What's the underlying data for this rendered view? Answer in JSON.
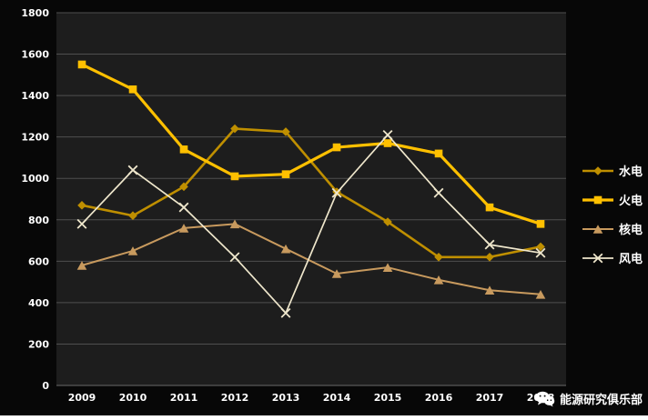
{
  "chart_data": {
    "type": "line",
    "categories": [
      "2009",
      "2010",
      "2011",
      "2012",
      "2013",
      "2014",
      "2015",
      "2016",
      "2017",
      "2018"
    ],
    "series": [
      {
        "name": "水电",
        "marker": "diamond",
        "color": "#BF8F00",
        "width": 2.6,
        "values": [
          870,
          820,
          960,
          1240,
          1225,
          935,
          790,
          620,
          620,
          670
        ]
      },
      {
        "name": "火电",
        "marker": "square",
        "color": "#FFC000",
        "width": 3.2,
        "values": [
          1550,
          1430,
          1140,
          1010,
          1020,
          1150,
          1170,
          1120,
          860,
          780
        ]
      },
      {
        "name": "核电",
        "marker": "triangle",
        "color": "#C89A5E",
        "width": 2.0,
        "values": [
          580,
          650,
          760,
          780,
          660,
          540,
          570,
          510,
          460,
          440
        ]
      },
      {
        "name": "风电",
        "marker": "x",
        "color": "#EFE7CC",
        "width": 1.7,
        "values": [
          780,
          1040,
          860,
          620,
          350,
          930,
          1210,
          930,
          680,
          640
        ]
      }
    ],
    "ylim": [
      0,
      1800
    ],
    "yticks": [
      "0",
      "200",
      "400",
      "600",
      "800",
      "1000",
      "1200",
      "1400",
      "1600",
      "1800"
    ],
    "grid": true,
    "legend_position": "right",
    "title": "",
    "xlabel": "",
    "ylabel": ""
  },
  "watermark": {
    "text": "能源研究俱乐部",
    "icon": "wechat-icon"
  },
  "colors": {
    "background": "#070707",
    "plot_background": "#1d1d1d",
    "grid": "#4f4f4f",
    "baseline": "#6a6a6a",
    "text": "#ffffff"
  }
}
